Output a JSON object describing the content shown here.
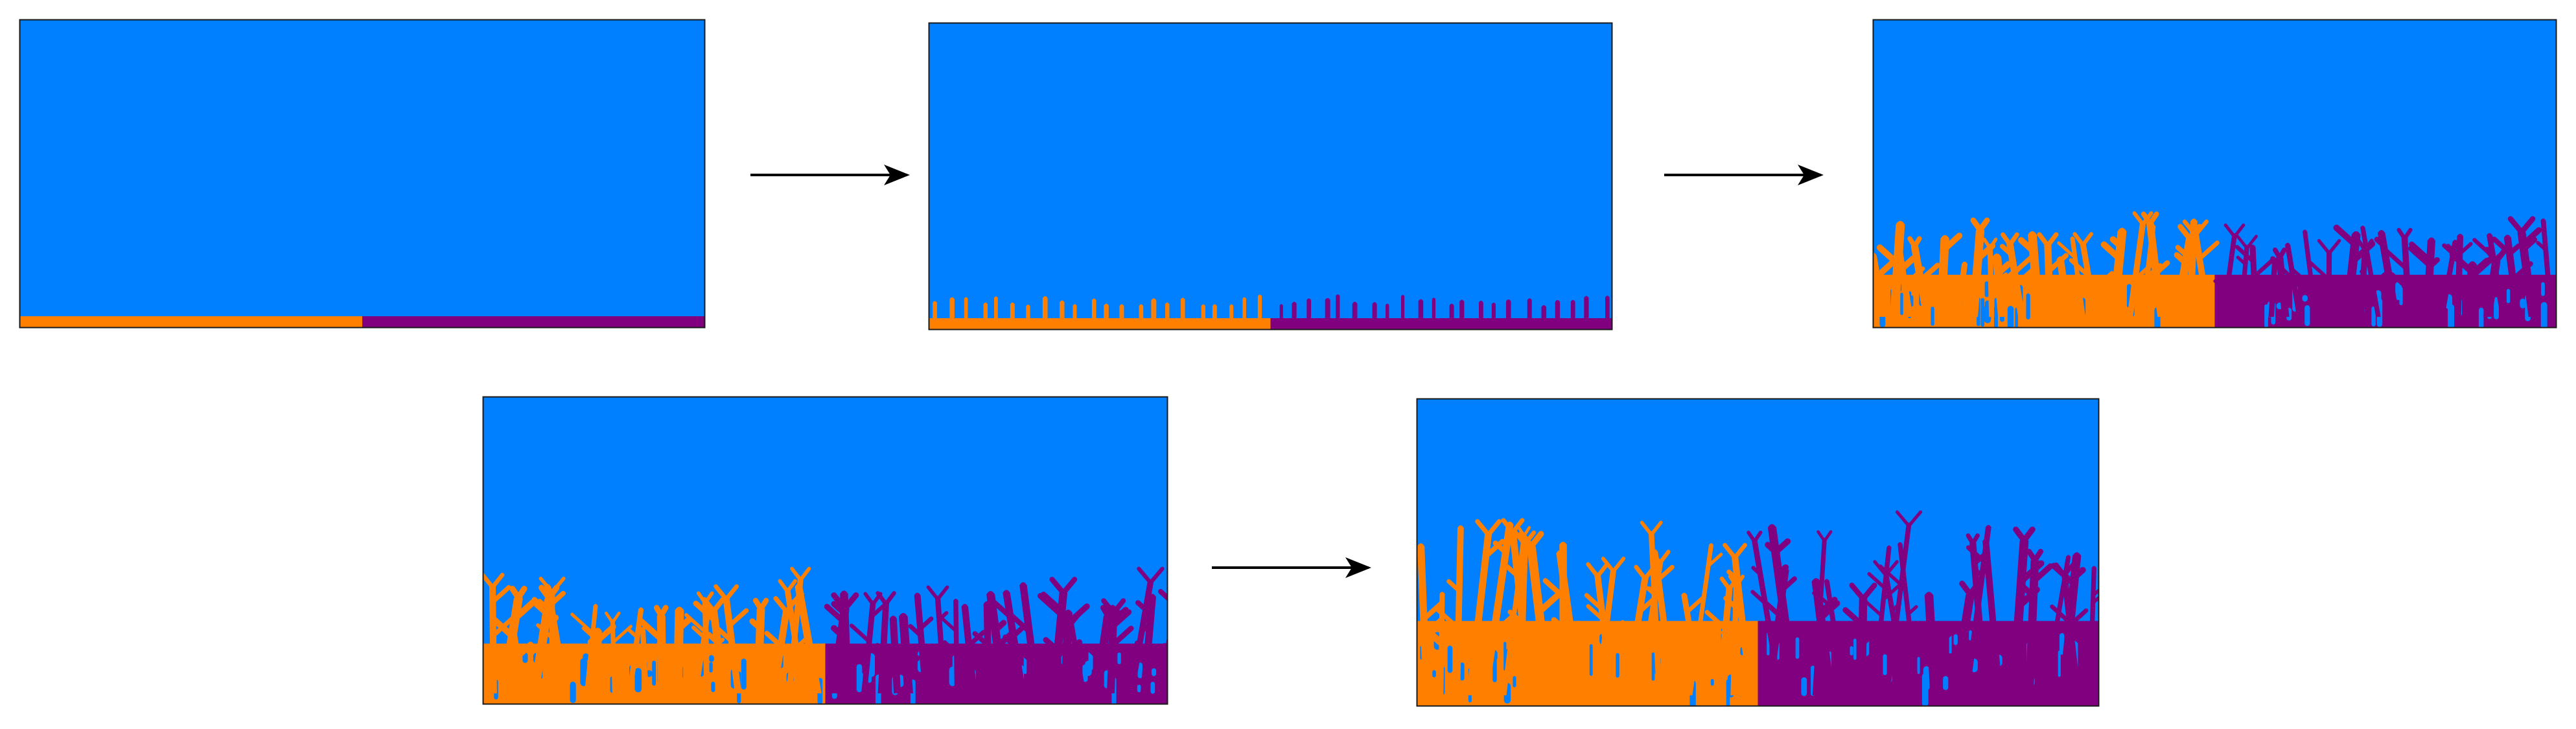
{
  "colors": {
    "background": "#ffffff",
    "melt": "#0080ff",
    "phase_a": "#ff8000",
    "phase_b": "#800080",
    "frame": "#1a1a1a",
    "arrow": "#000000"
  },
  "panels": [
    {
      "id": "stage-1",
      "growth": 0.0,
      "seed": 11
    },
    {
      "id": "stage-2",
      "growth": 0.08,
      "seed": 23
    },
    {
      "id": "stage-3",
      "growth": 0.32,
      "seed": 37
    },
    {
      "id": "stage-4",
      "growth": 0.38,
      "seed": 51
    },
    {
      "id": "stage-5",
      "growth": 0.57,
      "seed": 67
    }
  ],
  "arrows": [
    {
      "from": "stage-1",
      "to": "stage-2"
    },
    {
      "from": "stage-2",
      "to": "stage-3"
    },
    {
      "from": "stage-4",
      "to": "stage-5"
    }
  ]
}
